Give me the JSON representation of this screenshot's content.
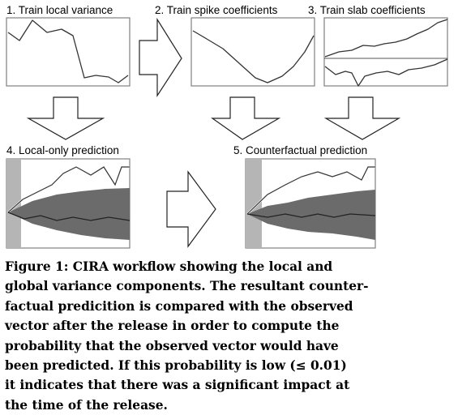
{
  "panels": [
    {
      "title": "1. Train local variance"
    },
    {
      "title": "2. Train spike coefficients"
    },
    {
      "title": "3. Train slab coefficients"
    },
    {
      "title": "4. Local-only prediction"
    },
    {
      "title": "5. Counterfactual prediction"
    }
  ],
  "caption": {
    "label": "Figure 1:",
    "lines": [
      "CIRA workflow showing the local and",
      "global variance components. The resultant counter-",
      "factual predicition is compared with the observed",
      "vector after the release in order to compute the",
      "probability that the observed vector would have",
      "been predicted. If this probability is low (≤ 0.01)",
      "it indicates that there was a significant impact at",
      "the time of the release."
    ]
  }
}
